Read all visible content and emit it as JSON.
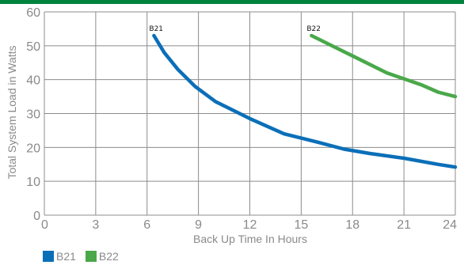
{
  "colors": {
    "top_bar": "#00843d",
    "grid": "#8c8c8c",
    "text": "#8a8a8a",
    "B21": "#0b6fb8",
    "B22": "#4aa84a"
  },
  "chart_data": {
    "type": "line",
    "xlabel": "Back Up Time In Hours",
    "ylabel": "Total System Load in Watts",
    "xlim": [
      0,
      24
    ],
    "ylim": [
      0,
      60
    ],
    "x_ticks": [
      "0",
      "3",
      "6",
      "9",
      "12",
      "15",
      "18",
      "21",
      "24"
    ],
    "y_ticks": [
      "0",
      "10",
      "20",
      "30",
      "40",
      "50",
      "60"
    ],
    "grid": true,
    "legend": "bottom-left",
    "series": [
      {
        "name": "B21",
        "label": "B21",
        "points": [
          [
            6.4,
            53
          ],
          [
            7.0,
            48
          ],
          [
            7.8,
            43
          ],
          [
            8.8,
            38
          ],
          [
            10.0,
            33.5
          ],
          [
            12.0,
            28.5
          ],
          [
            14.0,
            24
          ],
          [
            16.0,
            21.5
          ],
          [
            17.5,
            19.5
          ],
          [
            19.0,
            18.2
          ],
          [
            21.0,
            16.8
          ],
          [
            23.0,
            15.0
          ],
          [
            24.0,
            14.2
          ]
        ]
      },
      {
        "name": "B22",
        "label": "B22",
        "points": [
          [
            15.6,
            53
          ],
          [
            17.0,
            49.5
          ],
          [
            18.0,
            47
          ],
          [
            20.0,
            42
          ],
          [
            22.0,
            38.5
          ],
          [
            23.0,
            36.3
          ],
          [
            24.0,
            35
          ]
        ]
      }
    ]
  }
}
